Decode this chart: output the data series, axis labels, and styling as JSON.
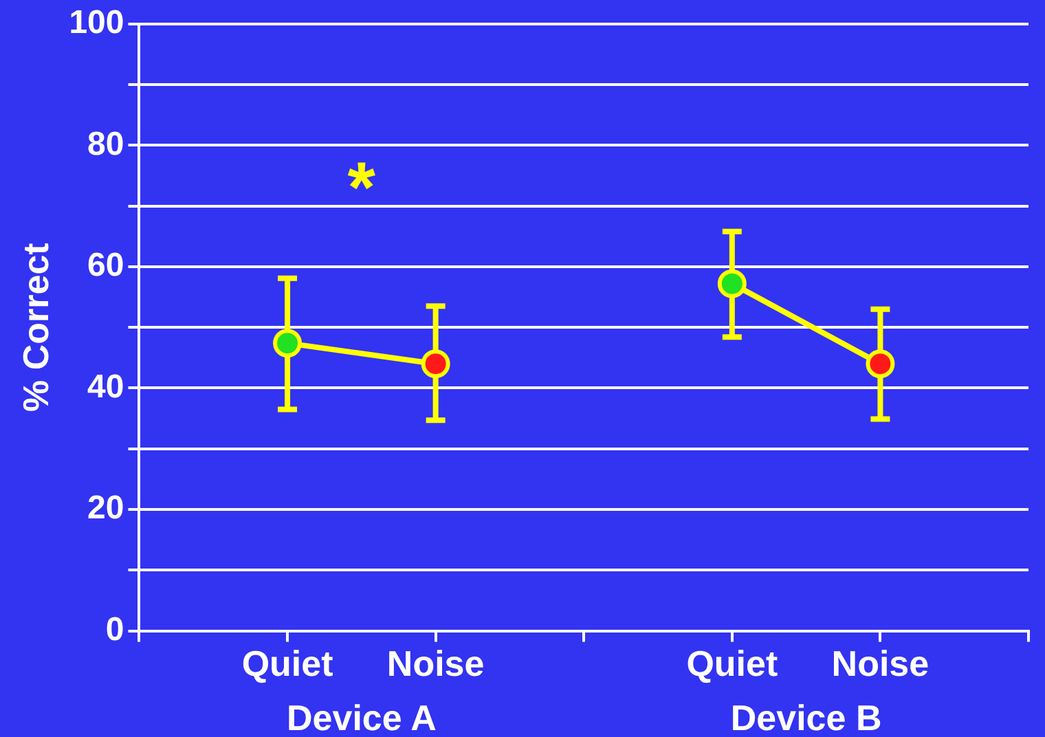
{
  "chart_data": {
    "type": "line",
    "ylabel": "% Correct",
    "categories": [
      null,
      "Quiet",
      "Noise",
      null,
      "Quiet",
      "Noise",
      null
    ],
    "series": [
      {
        "color": "#ffff00",
        "colors": [
          null,
          "#22e022",
          "#ff1a1a",
          null,
          "#22e022",
          "#ff1a1a",
          null
        ],
        "values": [
          null,
          47.4,
          44,
          null,
          57.2,
          44,
          null
        ],
        "errors": [
          null,
          [
            36.5,
            58.1
          ],
          [
            34.7,
            53.5
          ],
          null,
          [
            48.4,
            65.8
          ],
          [
            34.9,
            53
          ],
          null
        ]
      }
    ],
    "ylim": [
      0,
      100
    ],
    "yticks": [
      0,
      {
        "value": 10,
        "label": null
      },
      20,
      {
        "value": 30,
        "label": null
      },
      40,
      {
        "value": 50,
        "label": null
      },
      60,
      {
        "value": 70,
        "label": null
      },
      80,
      {
        "value": 90,
        "label": null
      },
      100
    ],
    "grid": "y",
    "legend": false,
    "marker": "circle",
    "line_style": "solid",
    "annotations": [
      "Device A",
      "Device B",
      "*"
    ]
  }
}
